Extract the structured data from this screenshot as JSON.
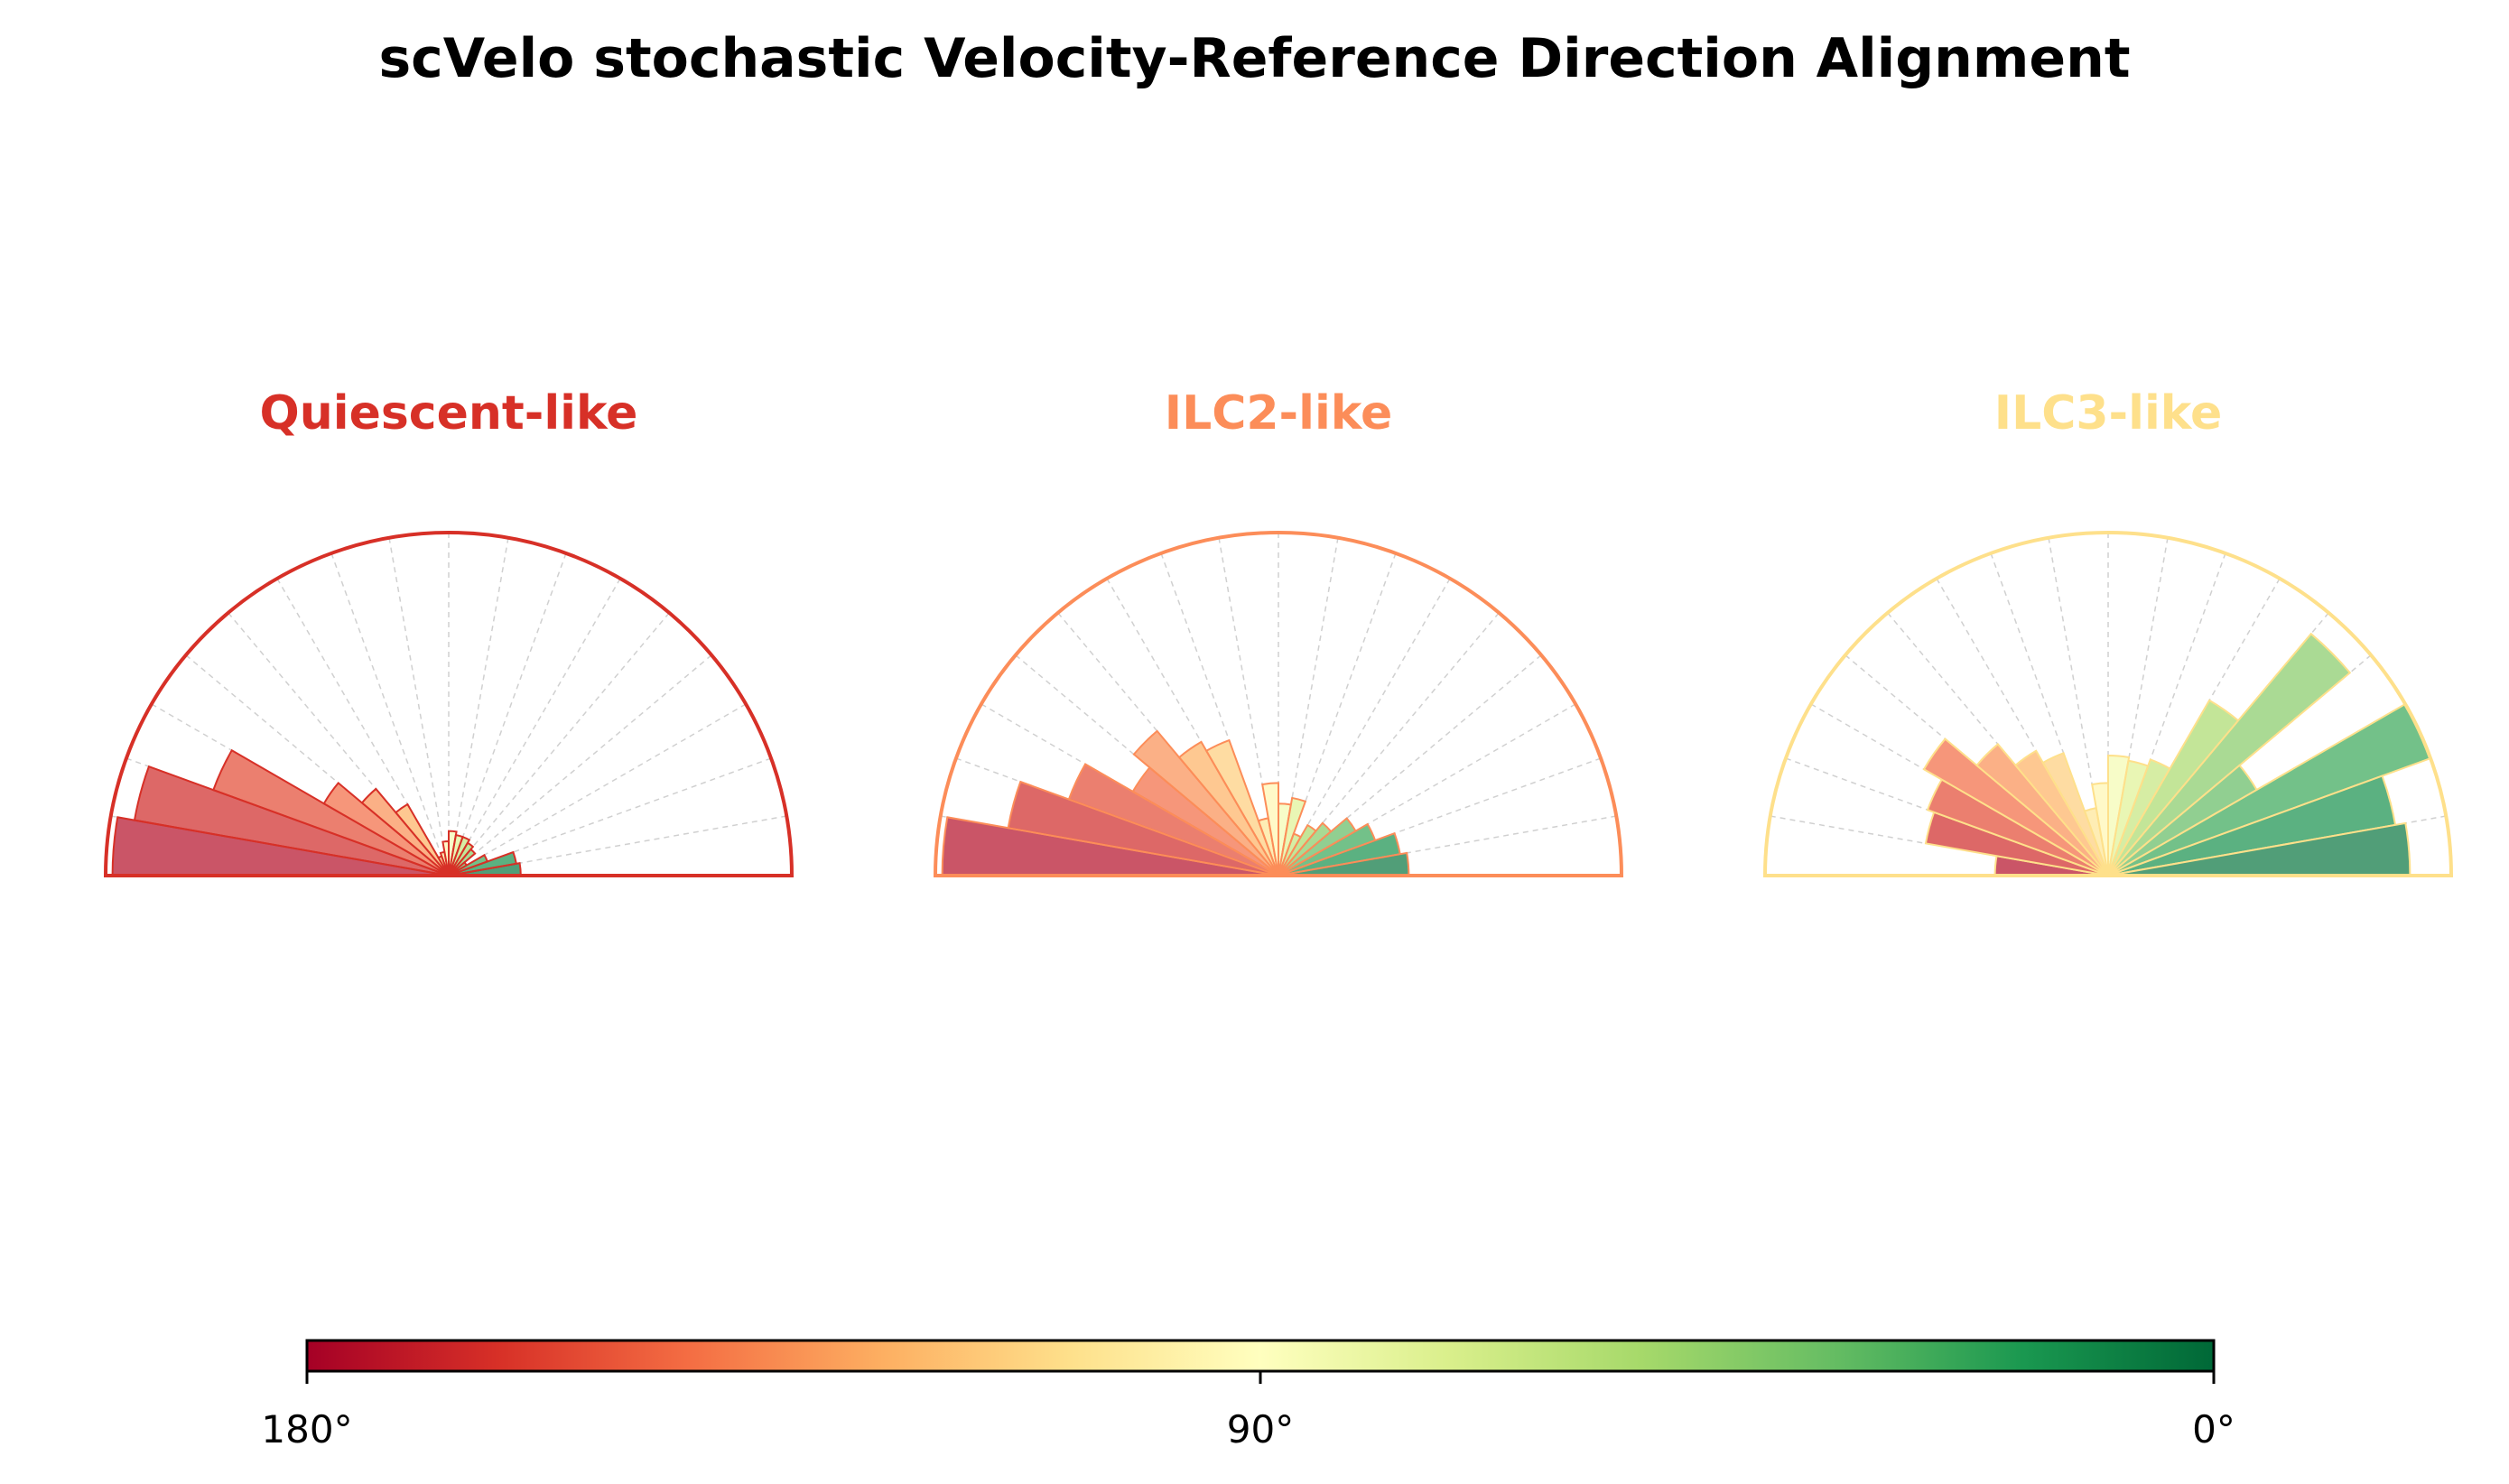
{
  "title": "scVelo stochastic Velocity-Reference Direction Alignment",
  "chart_data": [
    {
      "type": "bar",
      "subtype": "half-polar histogram",
      "title": "Quiescent-like",
      "title_color": "#d73027",
      "angle_bins_deg": [
        175,
        165,
        155,
        145,
        135,
        125,
        115,
        105,
        95,
        85,
        75,
        65,
        55,
        45,
        35,
        25,
        15,
        5
      ],
      "values_relative": [
        0.98,
        0.93,
        0.73,
        0.42,
        0.33,
        0.24,
        0.06,
        0.07,
        0.1,
        0.13,
        0.12,
        0.12,
        0.11,
        0.1,
        0.06,
        0.12,
        0.2,
        0.21
      ]
    },
    {
      "type": "bar",
      "subtype": "half-polar histogram",
      "title": "ILC2-like",
      "title_color": "#fc8d59",
      "angle_bins_deg": [
        175,
        165,
        155,
        145,
        135,
        125,
        115,
        105,
        95,
        85,
        75,
        65,
        55,
        45,
        35,
        25,
        15,
        5
      ],
      "values_relative": [
        0.98,
        0.8,
        0.65,
        0.49,
        0.55,
        0.45,
        0.42,
        0.17,
        0.27,
        0.21,
        0.23,
        0.13,
        0.17,
        0.2,
        0.26,
        0.3,
        0.36,
        0.38
      ]
    },
    {
      "type": "bar",
      "subtype": "half-polar histogram",
      "title": "ILC3-like",
      "title_color": "#fee08b",
      "angle_bins_deg": [
        175,
        165,
        155,
        145,
        135,
        125,
        115,
        105,
        95,
        85,
        75,
        65,
        55,
        45,
        35,
        25,
        15,
        5
      ],
      "values_relative": [
        0.33,
        0.54,
        0.56,
        0.62,
        0.5,
        0.42,
        0.38,
        0.2,
        0.27,
        0.35,
        0.34,
        0.36,
        0.59,
        0.92,
        0.5,
        1.0,
        0.85,
        0.88
      ]
    }
  ],
  "colorbar": {
    "colormap": "RdYlGn",
    "range_deg": [
      180,
      0
    ],
    "ticks": [
      "180°",
      "90°",
      "0°"
    ]
  }
}
